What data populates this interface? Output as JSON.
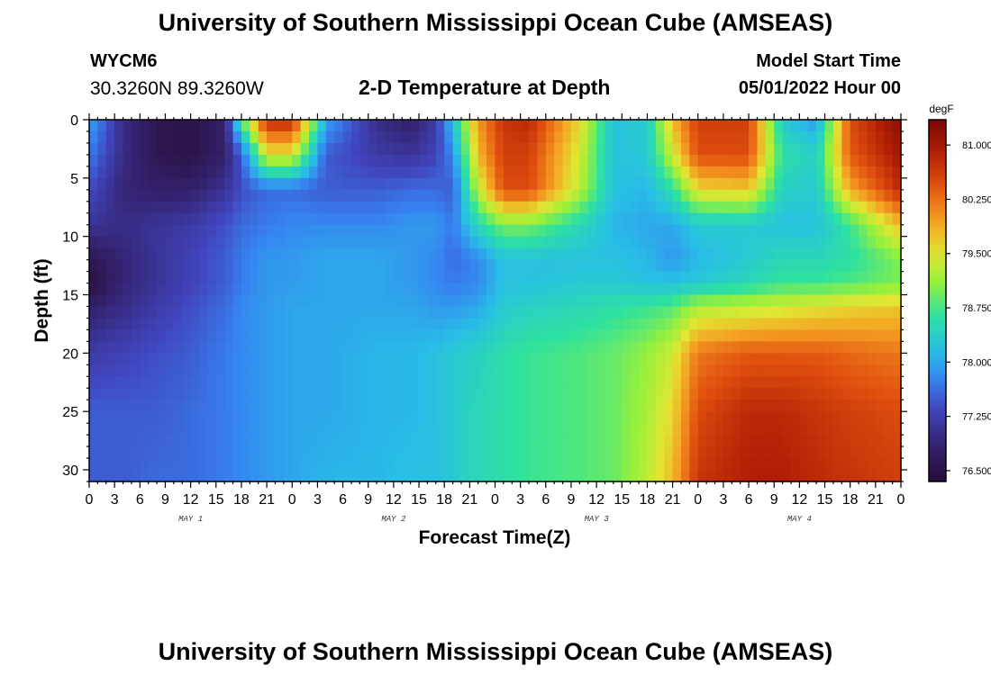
{
  "header": {
    "title": "University of Southern Mississippi Ocean Cube (AMSEAS)",
    "station": "WYCM6",
    "coords": "30.3260N  89.3260W",
    "subtitle": "2-D Temperature at Depth",
    "model_start_label": "Model Start Time",
    "model_start_value": "05/01/2022 Hour 00"
  },
  "footer": {
    "title": "University of Southern Mississippi Ocean Cube (AMSEAS)"
  },
  "chart_data": {
    "type": "heatmap",
    "title": "2-D Temperature at Depth",
    "xlabel": "Forecast Time(Z)",
    "ylabel": "Depth (ft)",
    "x_hours_range": [
      0,
      96
    ],
    "ylim": [
      0,
      31
    ],
    "x_tick_labels": [
      "0",
      "3",
      "6",
      "9",
      "12",
      "15",
      "18",
      "21",
      "0",
      "3",
      "6",
      "9",
      "12",
      "15",
      "18",
      "21",
      "0",
      "3",
      "6",
      "9",
      "12",
      "15",
      "18",
      "21",
      "0",
      "3",
      "6",
      "9",
      "12",
      "15",
      "18",
      "21",
      "0"
    ],
    "y_ticks": [
      0,
      5,
      10,
      15,
      20,
      25,
      30
    ],
    "day_labels": [
      "MAY 1",
      "MAY 2",
      "MAY 3",
      "MAY 4"
    ],
    "colorbar": {
      "unit": "degF",
      "min": 76.35,
      "max": 81.35,
      "ticks": [
        "81.000",
        "80.250",
        "79.500",
        "78.750",
        "78.000",
        "77.250",
        "76.500"
      ]
    },
    "depths_ft": [
      0,
      3,
      6,
      9,
      12,
      14,
      16,
      20,
      25,
      31
    ],
    "times_hr": [
      0,
      4,
      8,
      12,
      16,
      18,
      21,
      24,
      28,
      34,
      38,
      41,
      43,
      46,
      49,
      52,
      58,
      62,
      66,
      69,
      72,
      78,
      82,
      86,
      90,
      96
    ],
    "temperature_degF": [
      [
        78.0,
        77.0,
        76.6,
        76.5,
        76.8,
        78.8,
        80.8,
        80.8,
        78.0,
        77.0,
        76.8,
        77.2,
        78.2,
        80.0,
        80.7,
        80.8,
        79.6,
        78.2,
        78.3,
        79.8,
        80.6,
        80.6,
        78.3,
        77.9,
        80.5,
        81.2
      ],
      [
        77.7,
        77.0,
        76.6,
        76.5,
        76.8,
        77.5,
        79.5,
        79.5,
        77.5,
        77.2,
        77.1,
        77.3,
        77.8,
        79.8,
        80.6,
        80.6,
        79.4,
        78.2,
        78.3,
        79.4,
        80.5,
        80.5,
        78.6,
        78.4,
        80.4,
        81.0
      ],
      [
        77.4,
        76.9,
        76.8,
        76.8,
        77.1,
        77.4,
        77.6,
        77.6,
        77.5,
        77.5,
        77.6,
        77.6,
        77.5,
        79.3,
        80.5,
        80.5,
        79.3,
        78.2,
        78.1,
        78.6,
        79.6,
        79.7,
        78.4,
        78.3,
        79.9,
        80.8
      ],
      [
        77.1,
        77.0,
        77.1,
        77.2,
        77.4,
        77.6,
        77.7,
        77.8,
        77.8,
        77.8,
        77.9,
        77.9,
        77.7,
        78.5,
        79.0,
        79.0,
        78.5,
        78.1,
        78.0,
        78.0,
        78.3,
        78.3,
        78.2,
        78.2,
        78.7,
        79.8
      ],
      [
        76.6,
        76.9,
        77.1,
        77.3,
        77.5,
        77.7,
        77.9,
        77.9,
        78.0,
        78.0,
        77.9,
        77.8,
        77.6,
        77.8,
        78.2,
        78.2,
        78.2,
        78.2,
        78.1,
        77.9,
        78.1,
        78.3,
        78.5,
        78.5,
        78.6,
        79.0
      ],
      [
        76.4,
        76.9,
        77.1,
        77.3,
        77.5,
        77.7,
        77.9,
        77.9,
        78.0,
        78.0,
        77.9,
        77.8,
        77.7,
        77.8,
        78.2,
        78.2,
        78.3,
        78.3,
        78.2,
        78.2,
        78.3,
        78.5,
        78.7,
        78.7,
        78.8,
        79.0
      ],
      [
        76.8,
        77.0,
        77.2,
        77.4,
        77.6,
        77.8,
        77.9,
        78.0,
        78.0,
        78.0,
        78.0,
        77.9,
        77.9,
        78.0,
        78.3,
        78.4,
        78.5,
        78.6,
        78.7,
        78.8,
        79.2,
        79.3,
        79.4,
        79.5,
        79.6,
        79.7
      ],
      [
        77.2,
        77.3,
        77.4,
        77.5,
        77.7,
        77.8,
        77.9,
        78.0,
        78.0,
        78.1,
        78.1,
        78.2,
        78.3,
        78.4,
        78.6,
        78.7,
        78.8,
        78.9,
        79.1,
        79.4,
        80.2,
        80.4,
        80.4,
        80.4,
        80.3,
        80.2
      ],
      [
        77.5,
        77.5,
        77.5,
        77.6,
        77.7,
        77.8,
        77.9,
        78.0,
        78.0,
        78.1,
        78.1,
        78.2,
        78.3,
        78.5,
        78.6,
        78.7,
        78.8,
        78.9,
        79.2,
        79.6,
        80.5,
        80.8,
        80.8,
        80.7,
        80.6,
        80.5
      ],
      [
        77.5,
        77.5,
        77.6,
        77.6,
        77.7,
        77.8,
        77.9,
        78.0,
        78.1,
        78.1,
        78.2,
        78.2,
        78.3,
        78.5,
        78.6,
        78.7,
        78.8,
        78.9,
        79.3,
        79.8,
        80.7,
        80.9,
        80.9,
        80.8,
        80.7,
        80.6
      ]
    ]
  }
}
